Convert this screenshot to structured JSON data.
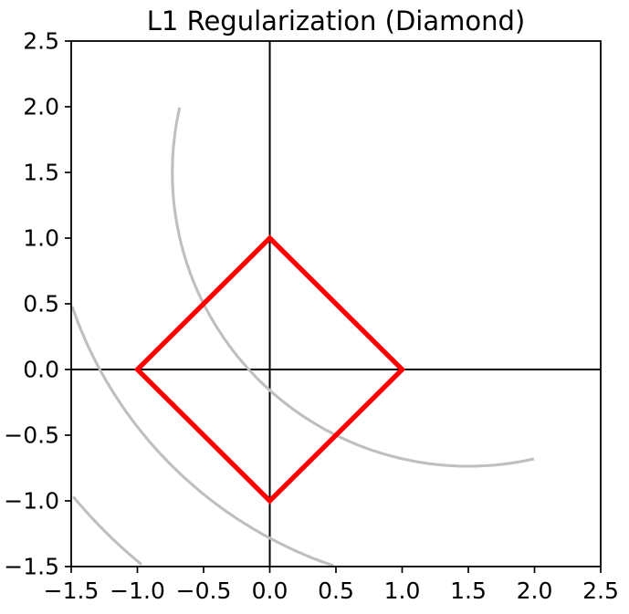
{
  "figure": {
    "background": "#ffffff",
    "title": "L1 Regularization (Diamond)"
  },
  "chart_data": {
    "type": "line",
    "title": "L1 Regularization (Diamond)",
    "xlabel": "",
    "ylabel": "",
    "xlim": [
      -1.5,
      2.5
    ],
    "ylim": [
      -1.5,
      2.5
    ],
    "grid": false,
    "legend": "none",
    "x_ticks": [
      -1.5,
      -1.0,
      -0.5,
      0.0,
      0.5,
      1.0,
      1.5,
      2.0,
      2.5
    ],
    "x_tick_labels": [
      "−1.5",
      "−1.0",
      "−0.5",
      "0.0",
      "0.5",
      "1.0",
      "1.5",
      "2.0",
      "2.5"
    ],
    "y_ticks": [
      -1.5,
      -1.0,
      -0.5,
      0.0,
      0.5,
      1.0,
      1.5,
      2.0,
      2.5
    ],
    "y_tick_labels": [
      "−1.5",
      "−1.0",
      "−0.5",
      "0.0",
      "0.5",
      "1.0",
      "1.5",
      "2.0",
      "2.5"
    ],
    "reference_lines": {
      "axhline_y": 0,
      "axvline_x": 0,
      "color": "#000000",
      "linewidth": 2
    },
    "axis_color": "#000000",
    "tick_length": 7,
    "series": [
      {
        "name": "loss-contour-arcs",
        "kind": "arcs",
        "center": [
          1.5,
          1.5
        ],
        "radii": [
          2.236,
          3.162,
          3.873
        ],
        "domain_x": [
          -1.5,
          2.0
        ],
        "domain_y": [
          -1.5,
          2.0
        ],
        "color": "#bfbfbf",
        "linewidth": 3.1
      },
      {
        "name": "l1-constraint-diamond",
        "kind": "polygon",
        "points": [
          [
            1,
            0
          ],
          [
            0,
            1
          ],
          [
            -1,
            0
          ],
          [
            0,
            -1
          ]
        ],
        "closed": true,
        "color": "#ff0000",
        "linewidth": 5.3
      }
    ]
  }
}
